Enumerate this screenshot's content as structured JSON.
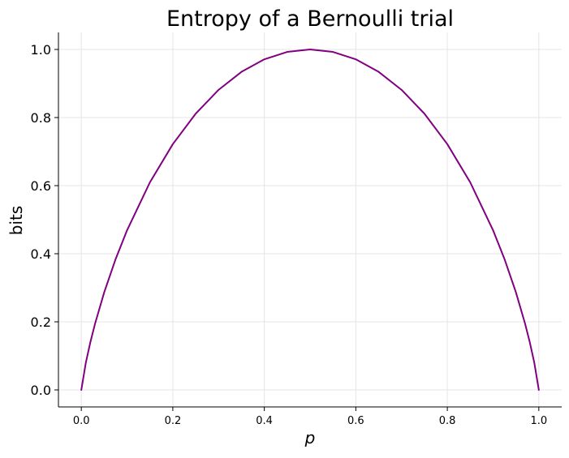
{
  "chart_data": {
    "type": "line",
    "title": "Entropy of a Bernoulli trial",
    "xlabel": "p",
    "ylabel": "bits",
    "xlim": [
      -0.05,
      1.05
    ],
    "ylim": [
      -0.05,
      1.05
    ],
    "xticks": [
      0.0,
      0.2,
      0.4,
      0.6,
      0.8,
      1.0
    ],
    "yticks": [
      0.0,
      0.2,
      0.4,
      0.6,
      0.8,
      1.0
    ],
    "xtick_labels": [
      "0.0",
      "0.2",
      "0.4",
      "0.6",
      "0.8",
      "1.0"
    ],
    "ytick_labels": [
      "0.0",
      "0.2",
      "0.4",
      "0.6",
      "0.8",
      "1.0"
    ],
    "grid": true,
    "series": [
      {
        "color": "#800080",
        "x": [
          0.0,
          0.01,
          0.02,
          0.03,
          0.05,
          0.075,
          0.1,
          0.15,
          0.2,
          0.25,
          0.3,
          0.35,
          0.4,
          0.45,
          0.5,
          0.55,
          0.6,
          0.65,
          0.7,
          0.75,
          0.8,
          0.85,
          0.9,
          0.925,
          0.95,
          0.97,
          0.98,
          0.99,
          1.0
        ],
        "y": [
          0.0,
          0.0808,
          0.1414,
          0.1944,
          0.2864,
          0.3843,
          0.469,
          0.6098,
          0.7219,
          0.8113,
          0.8813,
          0.9341,
          0.971,
          0.9928,
          1.0,
          0.9928,
          0.971,
          0.9341,
          0.8813,
          0.8113,
          0.7219,
          0.6098,
          0.469,
          0.3843,
          0.2864,
          0.1944,
          0.1414,
          0.0808,
          0.0
        ]
      }
    ]
  }
}
